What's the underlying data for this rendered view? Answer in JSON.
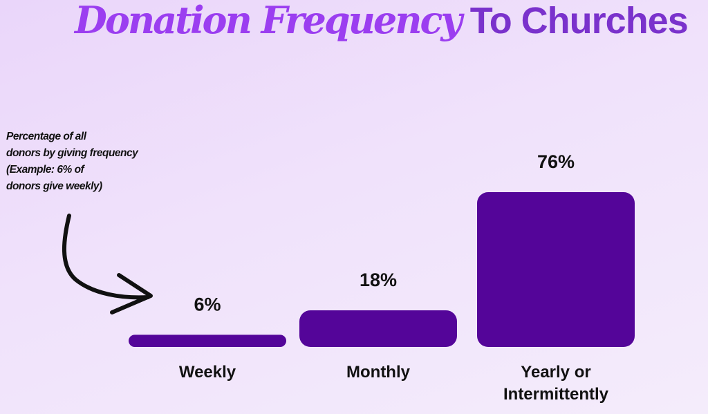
{
  "chart_data": {
    "type": "bar",
    "title": "Donation Frequency To Churches",
    "title_parts": [
      "Donation Frequency",
      "To Churches"
    ],
    "annotation": [
      "Percentage of all",
      "donors by giving frequency",
      "(Example: 6% of",
      "donors give weekly)"
    ],
    "categories": [
      [
        "Weekly"
      ],
      [
        "Monthly"
      ],
      [
        "Yearly or",
        "Intermittently"
      ]
    ],
    "values": [
      6,
      18,
      76
    ],
    "value_labels": [
      "6%",
      "18%",
      "76%"
    ],
    "unit": "%",
    "axes_visible": false,
    "grid": false,
    "colors": {
      "bar": "#540599",
      "title_accent": "#9b3ef0",
      "title_main": "#7a32cc",
      "background": "#efe0fb"
    }
  }
}
